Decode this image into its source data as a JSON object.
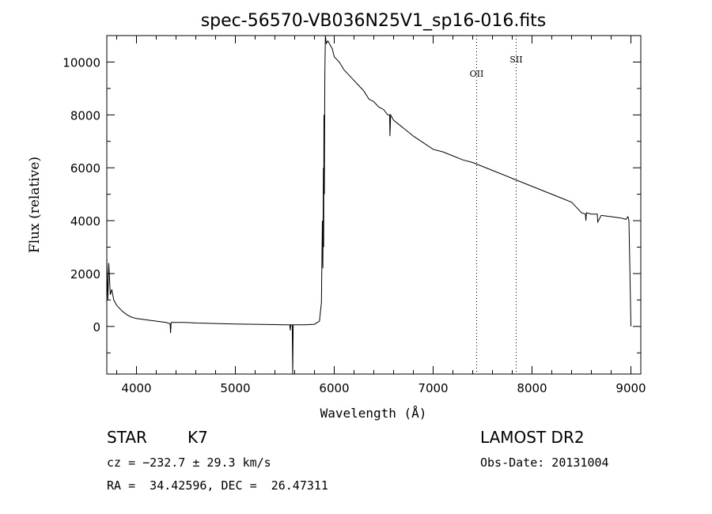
{
  "chart_data": {
    "type": "line",
    "title": "spec-56570-VB036N25V1_sp16-016.fits",
    "xlabel": "Wavelength (Å)",
    "ylabel": "Flux (relative)",
    "xlim": [
      3700,
      9100
    ],
    "ylim": [
      -1800,
      11000
    ],
    "xticks": [
      4000,
      5000,
      6000,
      7000,
      8000,
      9000
    ],
    "yticks": [
      0,
      2000,
      4000,
      6000,
      8000,
      10000
    ],
    "grid": false,
    "line_markers": [
      {
        "label": "OII",
        "x": 7440
      },
      {
        "label": "SII",
        "x": 7840
      }
    ],
    "series": [
      {
        "x": [
          3700,
          3710,
          3720,
          3735,
          3750,
          3770,
          3800,
          3850,
          3900,
          3950,
          4000,
          4100,
          4200,
          4300,
          4340,
          4345,
          4350,
          4400,
          4500,
          4600,
          4800,
          5000,
          5200,
          5400,
          5500,
          5550,
          5555,
          5560,
          5575,
          5580,
          5585,
          5600,
          5700,
          5800,
          5850,
          5870,
          5880,
          5885,
          5890,
          5893,
          5896,
          5900,
          5905,
          5910,
          5920,
          5935,
          5950,
          5980,
          6000,
          6050,
          6100,
          6150,
          6200,
          6250,
          6300,
          6350,
          6400,
          6450,
          6500,
          6540,
          6560,
          6563,
          6570,
          6600,
          6700,
          6800,
          6900,
          7000,
          7100,
          7200,
          7300,
          7400,
          7500,
          7600,
          7700,
          7800,
          7900,
          8000,
          8100,
          8200,
          8300,
          8400,
          8450,
          8500,
          8540,
          8545,
          8550,
          8600,
          8660,
          8665,
          8700,
          8800,
          8900,
          8950,
          8970,
          8980,
          8990,
          9000
        ],
        "values": [
          2600,
          1000,
          2400,
          1200,
          1400,
          1000,
          800,
          600,
          450,
          350,
          300,
          250,
          200,
          150,
          100,
          -250,
          150,
          150,
          150,
          130,
          110,
          90,
          80,
          70,
          60,
          60,
          -150,
          60,
          60,
          -1800,
          60,
          60,
          60,
          80,
          200,
          900,
          4000,
          2200,
          6000,
          3000,
          8000,
          5000,
          9500,
          11000,
          10700,
          10800,
          10700,
          10500,
          10200,
          10000,
          9700,
          9500,
          9300,
          9100,
          8900,
          8600,
          8500,
          8300,
          8200,
          8000,
          8000,
          7200,
          8000,
          7800,
          7500,
          7200,
          6950,
          6700,
          6600,
          6450,
          6300,
          6200,
          6050,
          5900,
          5750,
          5600,
          5450,
          5300,
          5150,
          5000,
          4850,
          4700,
          4500,
          4300,
          4250,
          4000,
          4300,
          4250,
          4250,
          3950,
          4200,
          4150,
          4100,
          4050,
          4150,
          4000,
          2000,
          0
        ]
      }
    ]
  },
  "info": {
    "object_class": "STAR",
    "subclass": "K7",
    "survey": "LAMOST DR2",
    "redshift": "cz = −232.7 ± 29.3 km/s",
    "obs_date": "Obs-Date: 20131004",
    "coords": "RA =  34.42596, DEC =  26.47311"
  }
}
